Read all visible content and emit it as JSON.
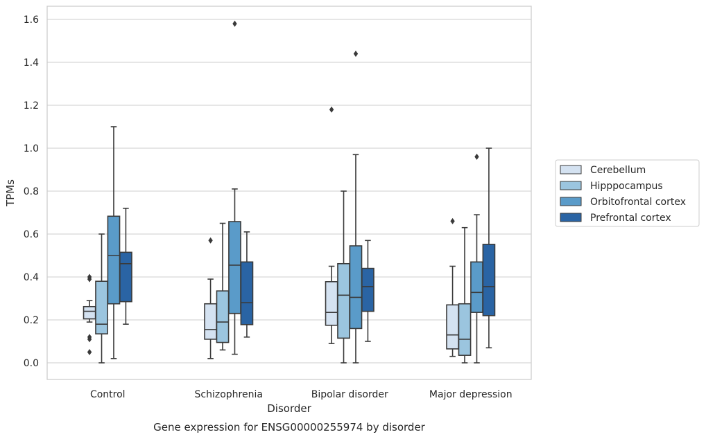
{
  "chart_data": {
    "type": "box",
    "caption": "Gene expression for ENSG00000255974 by disorder",
    "xlabel": "Disorder",
    "ylabel": "TPMs",
    "ylim": [
      -0.075,
      1.66
    ],
    "yticks": [
      0.0,
      0.2,
      0.4,
      0.6,
      0.8,
      1.0,
      1.2,
      1.4,
      1.6
    ],
    "ytick_labels": [
      "0.0",
      "0.2",
      "0.4",
      "0.6",
      "0.8",
      "1.0",
      "1.2",
      "1.4",
      "1.6"
    ],
    "grid": "horizontal",
    "legend_position": "right",
    "categories": [
      "Control",
      "Schizophrenia",
      "Bipolar disorder",
      "Major depression"
    ],
    "series": [
      {
        "name": "Cerebellum",
        "color": "#d4e2f1",
        "boxes": [
          {
            "whislo": 0.19,
            "q1": 0.205,
            "med": 0.24,
            "q3": 0.262,
            "whishi": 0.29,
            "fliers": [
              0.4,
              0.39,
              0.12,
              0.11,
              0.05
            ]
          },
          {
            "whislo": 0.02,
            "q1": 0.11,
            "med": 0.155,
            "q3": 0.275,
            "whishi": 0.39,
            "fliers": [
              0.57
            ]
          },
          {
            "whislo": 0.09,
            "q1": 0.175,
            "med": 0.235,
            "q3": 0.378,
            "whishi": 0.45,
            "fliers": [
              1.18
            ]
          },
          {
            "whislo": 0.03,
            "q1": 0.065,
            "med": 0.13,
            "q3": 0.27,
            "whishi": 0.45,
            "fliers": [
              0.66
            ]
          }
        ]
      },
      {
        "name": "Hipppocampus",
        "color": "#9bc5df",
        "boxes": [
          {
            "whislo": 0.0,
            "q1": 0.135,
            "med": 0.18,
            "q3": 0.38,
            "whishi": 0.6,
            "fliers": []
          },
          {
            "whislo": 0.06,
            "q1": 0.095,
            "med": 0.19,
            "q3": 0.335,
            "whishi": 0.65,
            "fliers": []
          },
          {
            "whislo": 0.0,
            "q1": 0.115,
            "med": 0.315,
            "q3": 0.462,
            "whishi": 0.8,
            "fliers": []
          },
          {
            "whislo": 0.0,
            "q1": 0.035,
            "med": 0.11,
            "q3": 0.275,
            "whishi": 0.63,
            "fliers": []
          }
        ]
      },
      {
        "name": "Orbitofrontal cortex",
        "color": "#5a9bc9",
        "boxes": [
          {
            "whislo": 0.02,
            "q1": 0.275,
            "med": 0.5,
            "q3": 0.683,
            "whishi": 1.1,
            "fliers": []
          },
          {
            "whislo": 0.04,
            "q1": 0.23,
            "med": 0.455,
            "q3": 0.658,
            "whishi": 0.81,
            "fliers": [
              1.58
            ]
          },
          {
            "whislo": 0.0,
            "q1": 0.16,
            "med": 0.305,
            "q3": 0.545,
            "whishi": 0.97,
            "fliers": [
              1.44
            ]
          },
          {
            "whislo": 0.0,
            "q1": 0.235,
            "med": 0.328,
            "q3": 0.47,
            "whishi": 0.69,
            "fliers": [
              0.96
            ]
          }
        ]
      },
      {
        "name": "Prefrontal cortex",
        "color": "#2a64a4",
        "boxes": [
          {
            "whislo": 0.18,
            "q1": 0.285,
            "med": 0.462,
            "q3": 0.515,
            "whishi": 0.72,
            "fliers": []
          },
          {
            "whislo": 0.12,
            "q1": 0.178,
            "med": 0.28,
            "q3": 0.47,
            "whishi": 0.61,
            "fliers": []
          },
          {
            "whislo": 0.1,
            "q1": 0.24,
            "med": 0.355,
            "q3": 0.44,
            "whishi": 0.57,
            "fliers": []
          },
          {
            "whislo": 0.07,
            "q1": 0.22,
            "med": 0.355,
            "q3": 0.552,
            "whishi": 1.0,
            "fliers": []
          }
        ]
      }
    ]
  }
}
